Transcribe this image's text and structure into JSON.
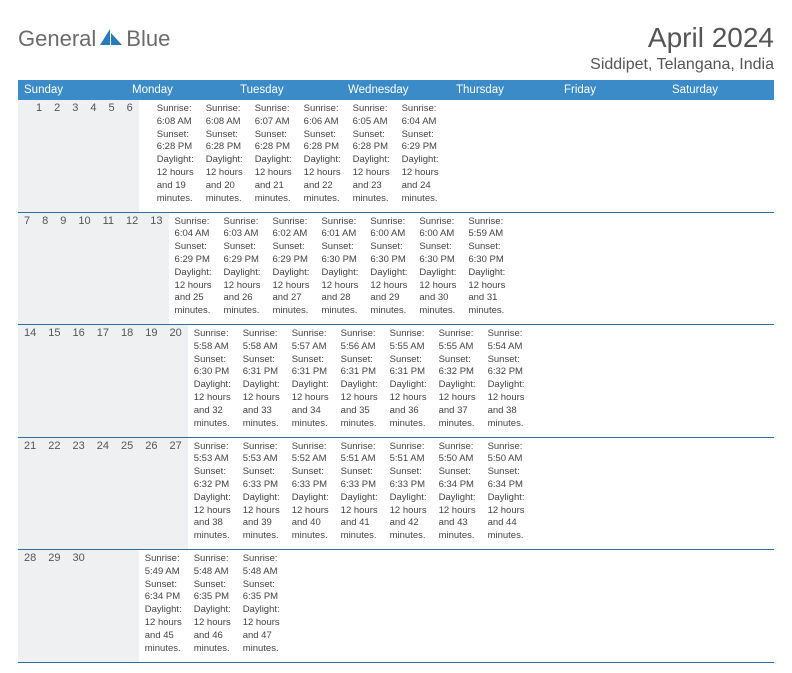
{
  "logo": {
    "text1": "General",
    "text2": "Blue"
  },
  "title": "April 2024",
  "location": "Siddipet, Telangana, India",
  "weekdays": [
    "Sunday",
    "Monday",
    "Tuesday",
    "Wednesday",
    "Thursday",
    "Friday",
    "Saturday"
  ],
  "colors": {
    "header_bg": "#3b8bc9",
    "header_text": "#ffffff",
    "daynum_bg": "#eef0f2",
    "rule": "#2a6fa3",
    "body_text": "#444444"
  },
  "weeks": [
    [
      {
        "num": "",
        "sunrise": "",
        "sunset": "",
        "daylight": ""
      },
      {
        "num": "1",
        "sunrise": "Sunrise: 6:08 AM",
        "sunset": "Sunset: 6:28 PM",
        "daylight": "Daylight: 12 hours and 19 minutes."
      },
      {
        "num": "2",
        "sunrise": "Sunrise: 6:08 AM",
        "sunset": "Sunset: 6:28 PM",
        "daylight": "Daylight: 12 hours and 20 minutes."
      },
      {
        "num": "3",
        "sunrise": "Sunrise: 6:07 AM",
        "sunset": "Sunset: 6:28 PM",
        "daylight": "Daylight: 12 hours and 21 minutes."
      },
      {
        "num": "4",
        "sunrise": "Sunrise: 6:06 AM",
        "sunset": "Sunset: 6:28 PM",
        "daylight": "Daylight: 12 hours and 22 minutes."
      },
      {
        "num": "5",
        "sunrise": "Sunrise: 6:05 AM",
        "sunset": "Sunset: 6:28 PM",
        "daylight": "Daylight: 12 hours and 23 minutes."
      },
      {
        "num": "6",
        "sunrise": "Sunrise: 6:04 AM",
        "sunset": "Sunset: 6:29 PM",
        "daylight": "Daylight: 12 hours and 24 minutes."
      }
    ],
    [
      {
        "num": "7",
        "sunrise": "Sunrise: 6:04 AM",
        "sunset": "Sunset: 6:29 PM",
        "daylight": "Daylight: 12 hours and 25 minutes."
      },
      {
        "num": "8",
        "sunrise": "Sunrise: 6:03 AM",
        "sunset": "Sunset: 6:29 PM",
        "daylight": "Daylight: 12 hours and 26 minutes."
      },
      {
        "num": "9",
        "sunrise": "Sunrise: 6:02 AM",
        "sunset": "Sunset: 6:29 PM",
        "daylight": "Daylight: 12 hours and 27 minutes."
      },
      {
        "num": "10",
        "sunrise": "Sunrise: 6:01 AM",
        "sunset": "Sunset: 6:30 PM",
        "daylight": "Daylight: 12 hours and 28 minutes."
      },
      {
        "num": "11",
        "sunrise": "Sunrise: 6:00 AM",
        "sunset": "Sunset: 6:30 PM",
        "daylight": "Daylight: 12 hours and 29 minutes."
      },
      {
        "num": "12",
        "sunrise": "Sunrise: 6:00 AM",
        "sunset": "Sunset: 6:30 PM",
        "daylight": "Daylight: 12 hours and 30 minutes."
      },
      {
        "num": "13",
        "sunrise": "Sunrise: 5:59 AM",
        "sunset": "Sunset: 6:30 PM",
        "daylight": "Daylight: 12 hours and 31 minutes."
      }
    ],
    [
      {
        "num": "14",
        "sunrise": "Sunrise: 5:58 AM",
        "sunset": "Sunset: 6:30 PM",
        "daylight": "Daylight: 12 hours and 32 minutes."
      },
      {
        "num": "15",
        "sunrise": "Sunrise: 5:58 AM",
        "sunset": "Sunset: 6:31 PM",
        "daylight": "Daylight: 12 hours and 33 minutes."
      },
      {
        "num": "16",
        "sunrise": "Sunrise: 5:57 AM",
        "sunset": "Sunset: 6:31 PM",
        "daylight": "Daylight: 12 hours and 34 minutes."
      },
      {
        "num": "17",
        "sunrise": "Sunrise: 5:56 AM",
        "sunset": "Sunset: 6:31 PM",
        "daylight": "Daylight: 12 hours and 35 minutes."
      },
      {
        "num": "18",
        "sunrise": "Sunrise: 5:55 AM",
        "sunset": "Sunset: 6:31 PM",
        "daylight": "Daylight: 12 hours and 36 minutes."
      },
      {
        "num": "19",
        "sunrise": "Sunrise: 5:55 AM",
        "sunset": "Sunset: 6:32 PM",
        "daylight": "Daylight: 12 hours and 37 minutes."
      },
      {
        "num": "20",
        "sunrise": "Sunrise: 5:54 AM",
        "sunset": "Sunset: 6:32 PM",
        "daylight": "Daylight: 12 hours and 38 minutes."
      }
    ],
    [
      {
        "num": "21",
        "sunrise": "Sunrise: 5:53 AM",
        "sunset": "Sunset: 6:32 PM",
        "daylight": "Daylight: 12 hours and 38 minutes."
      },
      {
        "num": "22",
        "sunrise": "Sunrise: 5:53 AM",
        "sunset": "Sunset: 6:33 PM",
        "daylight": "Daylight: 12 hours and 39 minutes."
      },
      {
        "num": "23",
        "sunrise": "Sunrise: 5:52 AM",
        "sunset": "Sunset: 6:33 PM",
        "daylight": "Daylight: 12 hours and 40 minutes."
      },
      {
        "num": "24",
        "sunrise": "Sunrise: 5:51 AM",
        "sunset": "Sunset: 6:33 PM",
        "daylight": "Daylight: 12 hours and 41 minutes."
      },
      {
        "num": "25",
        "sunrise": "Sunrise: 5:51 AM",
        "sunset": "Sunset: 6:33 PM",
        "daylight": "Daylight: 12 hours and 42 minutes."
      },
      {
        "num": "26",
        "sunrise": "Sunrise: 5:50 AM",
        "sunset": "Sunset: 6:34 PM",
        "daylight": "Daylight: 12 hours and 43 minutes."
      },
      {
        "num": "27",
        "sunrise": "Sunrise: 5:50 AM",
        "sunset": "Sunset: 6:34 PM",
        "daylight": "Daylight: 12 hours and 44 minutes."
      }
    ],
    [
      {
        "num": "28",
        "sunrise": "Sunrise: 5:49 AM",
        "sunset": "Sunset: 6:34 PM",
        "daylight": "Daylight: 12 hours and 45 minutes."
      },
      {
        "num": "29",
        "sunrise": "Sunrise: 5:48 AM",
        "sunset": "Sunset: 6:35 PM",
        "daylight": "Daylight: 12 hours and 46 minutes."
      },
      {
        "num": "30",
        "sunrise": "Sunrise: 5:48 AM",
        "sunset": "Sunset: 6:35 PM",
        "daylight": "Daylight: 12 hours and 47 minutes."
      },
      {
        "num": "",
        "sunrise": "",
        "sunset": "",
        "daylight": ""
      },
      {
        "num": "",
        "sunrise": "",
        "sunset": "",
        "daylight": ""
      },
      {
        "num": "",
        "sunrise": "",
        "sunset": "",
        "daylight": ""
      },
      {
        "num": "",
        "sunrise": "",
        "sunset": "",
        "daylight": ""
      }
    ]
  ]
}
